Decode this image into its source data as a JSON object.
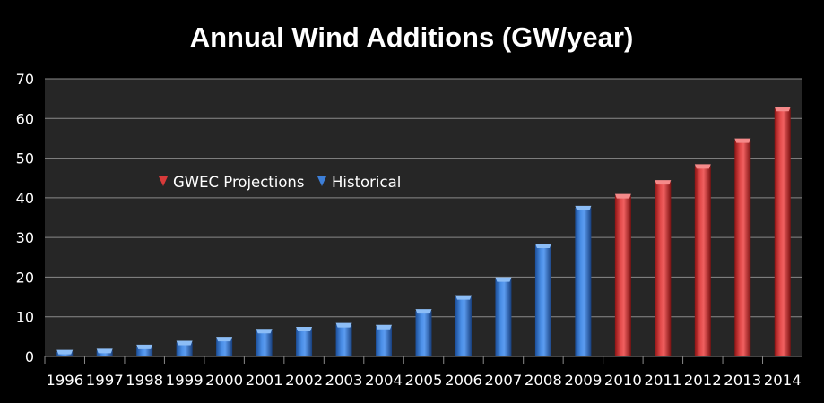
{
  "chart_data": {
    "type": "bar",
    "title": "Annual Wind Additions (GW/year)",
    "xlabel": "",
    "ylabel": "",
    "ylim": [
      0,
      70
    ],
    "yticks": [
      "0",
      "10",
      "20",
      "30",
      "40",
      "50",
      "60",
      "70"
    ],
    "grid": true,
    "legend_placement": "center-left",
    "categories": [
      "1996",
      "1997",
      "1998",
      "1999",
      "2000",
      "2001",
      "2002",
      "2003",
      "2004",
      "2005",
      "2006",
      "2007",
      "2008",
      "2009",
      "2010",
      "2011",
      "2012",
      "2013",
      "2014"
    ],
    "series": [
      {
        "name": "GWEC Projections",
        "color": "#d83a3a",
        "values": [
          null,
          null,
          null,
          null,
          null,
          null,
          null,
          null,
          null,
          null,
          null,
          null,
          null,
          null,
          40.5,
          44,
          48,
          54.5,
          62.5
        ]
      },
      {
        "name": "Historical",
        "color": "#3d7fd8",
        "values": [
          1.2,
          1.5,
          2.5,
          3.5,
          4.5,
          6.5,
          7,
          8,
          7.5,
          11.5,
          15,
          19.5,
          28,
          37.5,
          null,
          null,
          null,
          null,
          null
        ]
      }
    ]
  }
}
